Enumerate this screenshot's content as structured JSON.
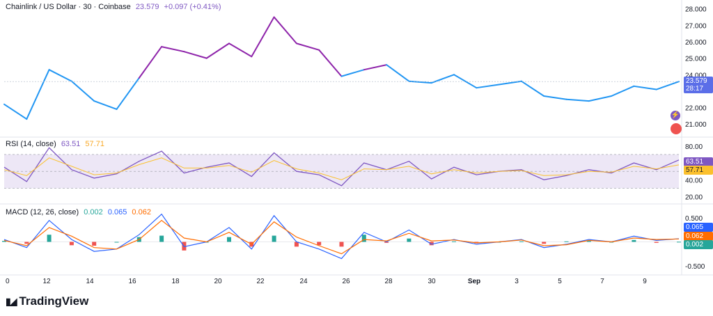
{
  "header": {
    "symbol": "Chainlink / US Dollar · 30 · Coinbase",
    "price": "23.579",
    "change": "+0.097 (+0.41%)"
  },
  "rsi_legend": {
    "label": "RSI (14, close)",
    "rsi": "63.51",
    "ma": "57.71"
  },
  "macd_legend": {
    "label": "MACD (12, 26, close)",
    "hist": "0.002",
    "macd": "0.065",
    "signal": "0.062"
  },
  "badges": {
    "price": "23.579",
    "countdown": "28:17",
    "rsi": "63.51",
    "rsi_ma": "57.71",
    "macd": "0.065",
    "signal": "0.062",
    "hist": "0.002"
  },
  "logo": {
    "text": "TradingView"
  },
  "colors": {
    "price_low": "#2196f3",
    "price_high": "#8e24aa",
    "rsi": "#7e57c2",
    "rsi_ma": "#fbc02d",
    "rsi_band": "#ede7f6",
    "macd": "#2962ff",
    "signal": "#ff6d00",
    "hist_pos": "#26a69a",
    "hist_neg": "#ef5350",
    "badge_price": "#5b6ee8"
  },
  "chart_data": [
    {
      "type": "line",
      "title": "Chainlink / US Dollar · 30 · Coinbase",
      "y_ticks": [
        "28.000",
        "27.000",
        "26.000",
        "25.000",
        "24.000",
        "22.000",
        "21.000"
      ],
      "ylim": [
        20.5,
        28.2
      ],
      "x_ticks": [
        "0",
        "12",
        "14",
        "16",
        "18",
        "20",
        "22",
        "24",
        "26",
        "28",
        "30",
        "Sep",
        "3",
        "5",
        "7",
        "9"
      ],
      "x": [
        "11 Aug",
        "12 Aug",
        "13 Aug",
        "14 Aug",
        "15 Aug",
        "16 Aug",
        "17 Aug",
        "18 Aug",
        "19 Aug",
        "20 Aug",
        "21 Aug",
        "22 Aug",
        "23 Aug",
        "24 Aug",
        "25 Aug",
        "26 Aug",
        "27 Aug",
        "28 Aug",
        "29 Aug",
        "30 Aug",
        "31 Aug",
        "1 Sep",
        "2 Sep",
        "3 Sep",
        "4 Sep",
        "5 Sep",
        "6 Sep",
        "7 Sep",
        "8 Sep",
        "9 Sep",
        "10 Sep"
      ],
      "series": [
        {
          "values": [
            22.2,
            21.3,
            24.3,
            23.6,
            22.4,
            21.9,
            23.8,
            25.7,
            25.4,
            25.0,
            25.9,
            25.1,
            27.5,
            25.9,
            25.5,
            23.9,
            24.3,
            24.6,
            23.6,
            23.5,
            24.0,
            23.2,
            23.4,
            23.6,
            22.7,
            22.5,
            22.4,
            22.7,
            23.3,
            23.1,
            23.58
          ]
        }
      ]
    },
    {
      "type": "line",
      "title": "RSI (14, close)",
      "y_ticks": [
        "80.00",
        "60.00",
        "40.00",
        "20.00"
      ],
      "ylim": [
        18,
        84
      ],
      "band": [
        30,
        70
      ],
      "x": [
        "11 Aug",
        "12 Aug",
        "13 Aug",
        "14 Aug",
        "15 Aug",
        "16 Aug",
        "17 Aug",
        "18 Aug",
        "19 Aug",
        "20 Aug",
        "21 Aug",
        "22 Aug",
        "23 Aug",
        "24 Aug",
        "25 Aug",
        "26 Aug",
        "27 Aug",
        "28 Aug",
        "29 Aug",
        "30 Aug",
        "31 Aug",
        "1 Sep",
        "2 Sep",
        "3 Sep",
        "4 Sep",
        "5 Sep",
        "6 Sep",
        "7 Sep",
        "8 Sep",
        "9 Sep",
        "10 Sep"
      ],
      "series": [
        {
          "name": "RSI",
          "values": [
            55,
            38,
            78,
            52,
            42,
            47,
            62,
            74,
            48,
            55,
            60,
            44,
            72,
            50,
            46,
            33,
            60,
            52,
            62,
            41,
            55,
            46,
            50,
            52,
            40,
            45,
            52,
            48,
            60,
            52,
            63.51
          ]
        },
        {
          "name": "MA",
          "values": [
            52,
            45,
            66,
            56,
            46,
            48,
            58,
            66,
            54,
            54,
            57,
            49,
            63,
            53,
            48,
            40,
            53,
            52,
            56,
            47,
            52,
            48,
            50,
            51,
            45,
            46,
            50,
            49,
            56,
            53,
            57.71
          ]
        }
      ]
    },
    {
      "type": "line",
      "title": "MACD (12, 26, close)",
      "y_ticks": [
        "0.500",
        "-0.500"
      ],
      "ylim": [
        -0.62,
        0.62
      ],
      "x": [
        "11 Aug",
        "12 Aug",
        "13 Aug",
        "14 Aug",
        "15 Aug",
        "16 Aug",
        "17 Aug",
        "18 Aug",
        "19 Aug",
        "20 Aug",
        "21 Aug",
        "22 Aug",
        "23 Aug",
        "24 Aug",
        "25 Aug",
        "26 Aug",
        "27 Aug",
        "28 Aug",
        "29 Aug",
        "30 Aug",
        "31 Aug",
        "1 Sep",
        "2 Sep",
        "3 Sep",
        "4 Sep",
        "5 Sep",
        "6 Sep",
        "7 Sep",
        "8 Sep",
        "9 Sep",
        "10 Sep"
      ],
      "series": [
        {
          "name": "MACD",
          "values": [
            0.05,
            -0.12,
            0.45,
            0.05,
            -0.2,
            -0.15,
            0.15,
            0.58,
            -0.1,
            0.0,
            0.3,
            -0.15,
            0.55,
            0.0,
            -0.15,
            -0.35,
            0.2,
            0.0,
            0.25,
            -0.05,
            0.05,
            -0.05,
            0.0,
            0.05,
            -0.12,
            -0.05,
            0.05,
            0.0,
            0.12,
            0.03,
            0.065
          ]
        },
        {
          "name": "Signal",
          "values": [
            0.03,
            -0.08,
            0.3,
            0.12,
            -0.12,
            -0.15,
            0.05,
            0.45,
            0.08,
            0.0,
            0.2,
            -0.05,
            0.42,
            0.1,
            -0.08,
            -0.25,
            0.05,
            0.02,
            0.18,
            0.02,
            0.04,
            -0.02,
            0.0,
            0.04,
            -0.08,
            -0.06,
            0.03,
            0.0,
            0.08,
            0.05,
            0.062
          ]
        }
      ]
    }
  ]
}
